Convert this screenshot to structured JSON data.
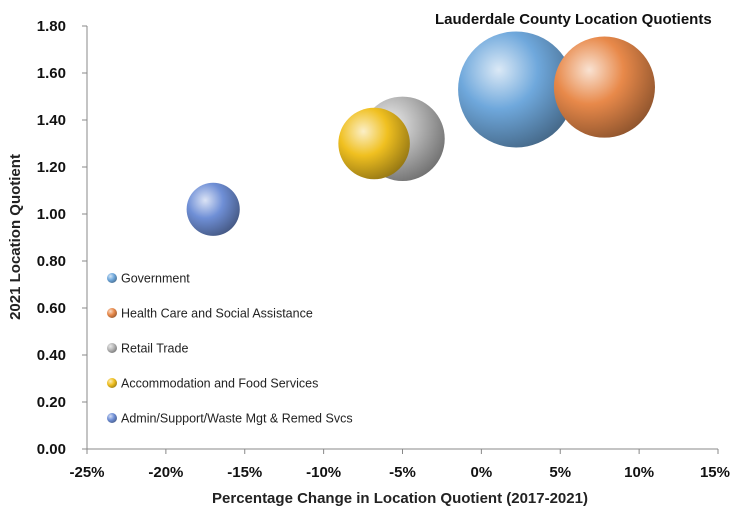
{
  "chart_data": {
    "type": "bubble",
    "title": "Lauderdale County Location Quotients",
    "xlabel": "Percentage Change in Location Quotient (2017-2021)",
    "ylabel": "2021 Location Quotient",
    "xlim": [
      -25,
      15
    ],
    "ylim": [
      0,
      1.8
    ],
    "x_ticks": [
      "-25%",
      "-20%",
      "-15%",
      "-10%",
      "-5%",
      "0%",
      "5%",
      "10%",
      "15%"
    ],
    "y_ticks": [
      "0.00",
      "0.20",
      "0.40",
      "0.60",
      "0.80",
      "1.00",
      "1.20",
      "1.40",
      "1.60",
      "1.80"
    ],
    "legend_position": "left-center",
    "series": [
      {
        "name": "Government",
        "x": 2.2,
        "y": 1.53,
        "size": 1.0,
        "color": "#6fa8dc"
      },
      {
        "name": "Health Care and Social Assistance",
        "x": 7.8,
        "y": 1.54,
        "size": 0.76,
        "color": "#e8894a"
      },
      {
        "name": "Retail Trade",
        "x": -5.0,
        "y": 1.32,
        "size": 0.53,
        "color": "#b5b5b5"
      },
      {
        "name": "Accommodation and Food Services",
        "x": -6.8,
        "y": 1.3,
        "size": 0.38,
        "color": "#f0c020"
      },
      {
        "name": "Admin/Support/Waste Mgt & Remed Svcs",
        "x": -17.0,
        "y": 1.02,
        "size": 0.21,
        "color": "#6f8fd6"
      }
    ]
  }
}
